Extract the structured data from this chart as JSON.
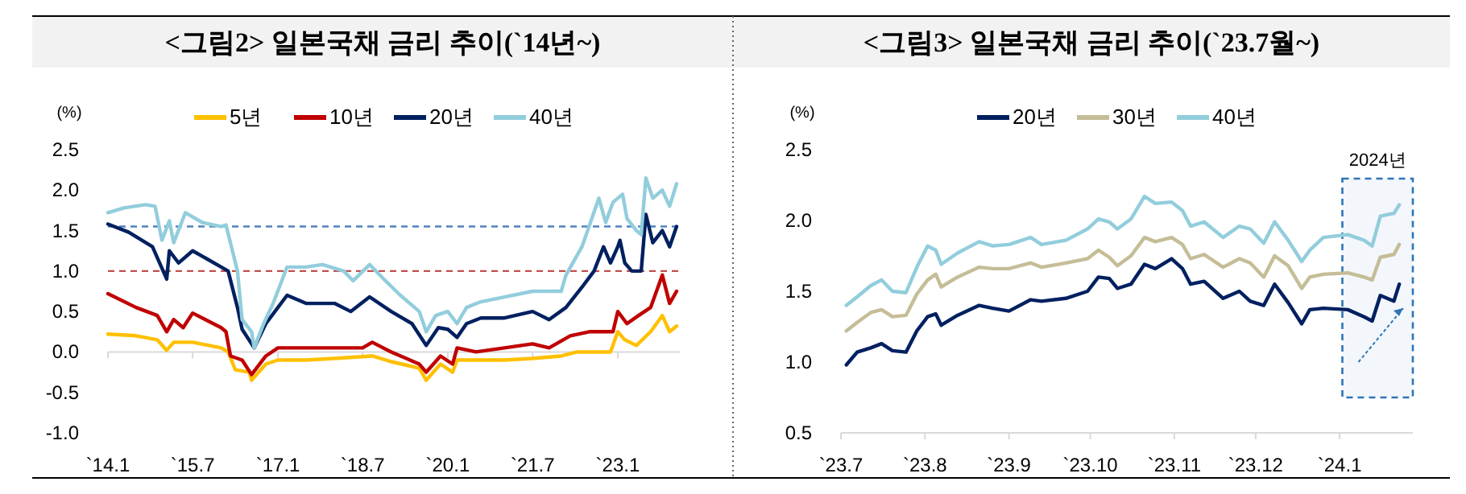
{
  "chart_data": [
    {
      "type": "line",
      "title": "<그림2> 일본국채 금리 추이(`14년~)",
      "ylabel": "(%)",
      "legend": "top",
      "grid": false,
      "line_style": "solid",
      "marker": "none",
      "xlim": [
        "2014-01-01",
        "2024-02-05"
      ],
      "xticks": [
        {
          "value": "2014-01-01",
          "label": "`14.1"
        },
        {
          "value": "2015-07-01",
          "label": "`15.7"
        },
        {
          "value": "2017-01-01",
          "label": "`17.1"
        },
        {
          "value": "2018-07-01",
          "label": "`18.7"
        },
        {
          "value": "2020-01-01",
          "label": "`20.1"
        },
        {
          "value": "2021-07-01",
          "label": "`21.7"
        },
        {
          "value": "2023-01-01",
          "label": "`23.1"
        }
      ],
      "ylim": [
        -1,
        2.5
      ],
      "yticks": [
        {
          "value": -1,
          "label": "-1.0"
        },
        {
          "value": -0.5,
          "label": "-0.5"
        },
        {
          "value": 0,
          "label": "0.0"
        },
        {
          "value": 0.5,
          "label": "0.5"
        },
        {
          "value": 1,
          "label": "1.0"
        },
        {
          "value": 1.5,
          "label": "1.5"
        },
        {
          "value": 2,
          "label": "2.0"
        },
        {
          "value": 2.5,
          "label": "2.5"
        }
      ],
      "ref_lines": [
        {
          "axis": "y",
          "value": 1.55,
          "color": "#4f81bd",
          "line_style": "dashed"
        },
        {
          "axis": "y",
          "value": 1.0,
          "color": "#c0504d",
          "line_style": "dashed"
        }
      ],
      "series": [
        {
          "name": "5년",
          "color": "#ffc000",
          "x": [
            "2014-01-01",
            "2014-07-01",
            "2014-11-15",
            "2015-01-15",
            "2015-03-01",
            "2015-07-01",
            "2016-01-01",
            "2016-02-15",
            "2016-04-01",
            "2016-07-01",
            "2016-07-15",
            "2016-10-15",
            "2017-01-01",
            "2017-07-01",
            "2018-01-01",
            "2018-09-01",
            "2019-01-01",
            "2019-07-01",
            "2019-08-15",
            "2019-11-15",
            "2020-02-01",
            "2020-03-01",
            "2021-01-01",
            "2021-07-01",
            "2022-01-01",
            "2022-04-15",
            "2022-11-15",
            "2023-01-01",
            "2023-02-15",
            "2023-05-01",
            "2023-08-01",
            "2023-10-15",
            "2023-12-01",
            "2024-01-15"
          ],
          "values": [
            0.22,
            0.2,
            0.15,
            0.02,
            0.12,
            0.12,
            0.05,
            0,
            -0.22,
            -0.25,
            -0.35,
            -0.15,
            -0.1,
            -0.1,
            -0.08,
            -0.05,
            -0.12,
            -0.2,
            -0.35,
            -0.15,
            -0.25,
            -0.1,
            -0.1,
            -0.08,
            -0.05,
            0,
            0,
            0.25,
            0.15,
            0.08,
            0.25,
            0.45,
            0.25,
            0.32
          ]
        },
        {
          "name": "10년",
          "color": "#c00000",
          "x": [
            "2014-01-01",
            "2014-07-01",
            "2014-11-15",
            "2015-01-15",
            "2015-03-01",
            "2015-05-01",
            "2015-07-01",
            "2016-01-01",
            "2016-02-01",
            "2016-03-01",
            "2016-05-15",
            "2016-07-15",
            "2016-10-15",
            "2017-01-01",
            "2017-07-01",
            "2018-01-01",
            "2018-07-01",
            "2018-09-01",
            "2019-01-01",
            "2019-07-01",
            "2019-08-15",
            "2019-11-15",
            "2020-02-01",
            "2020-03-01",
            "2020-07-01",
            "2021-01-01",
            "2021-07-01",
            "2021-10-15",
            "2022-03-01",
            "2022-07-01",
            "2022-12-01",
            "2023-01-01",
            "2023-03-01",
            "2023-05-15",
            "2023-08-01",
            "2023-10-15",
            "2023-12-01",
            "2024-01-15"
          ],
          "values": [
            0.72,
            0.55,
            0.45,
            0.25,
            0.4,
            0.3,
            0.48,
            0.3,
            0.25,
            -0.05,
            -0.1,
            -0.28,
            -0.05,
            0.05,
            0.05,
            0.05,
            0.05,
            0.12,
            0,
            -0.15,
            -0.25,
            -0.05,
            -0.15,
            0.05,
            0,
            0.05,
            0.1,
            0.05,
            0.2,
            0.25,
            0.25,
            0.5,
            0.35,
            0.45,
            0.55,
            0.95,
            0.6,
            0.75
          ]
        },
        {
          "name": "20년",
          "color": "#002060",
          "x": [
            "2014-01-01",
            "2014-05-15",
            "2014-10-15",
            "2015-01-15",
            "2015-02-01",
            "2015-04-01",
            "2015-07-01",
            "2016-01-01",
            "2016-02-15",
            "2016-04-15",
            "2016-05-15",
            "2016-08-01",
            "2016-10-15",
            "2017-01-01",
            "2017-03-01",
            "2017-07-01",
            "2018-01-01",
            "2018-04-15",
            "2018-08-15",
            "2019-01-01",
            "2019-05-15",
            "2019-08-15",
            "2019-11-01",
            "2020-01-01",
            "2020-03-01",
            "2020-05-01",
            "2020-08-01",
            "2021-01-01",
            "2021-07-01",
            "2021-10-15",
            "2022-02-01",
            "2022-05-15",
            "2022-08-01",
            "2022-10-01",
            "2022-11-15",
            "2023-01-01",
            "2023-01-15",
            "2023-02-15",
            "2023-04-01",
            "2023-06-01",
            "2023-07-01",
            "2023-08-15",
            "2023-10-15",
            "2023-12-01",
            "2024-01-15"
          ],
          "values": [
            1.58,
            1.48,
            1.3,
            0.9,
            1.25,
            1.1,
            1.25,
            1.05,
            1,
            0.55,
            0.28,
            0.05,
            0.35,
            0.55,
            0.7,
            0.6,
            0.6,
            0.5,
            0.68,
            0.5,
            0.35,
            0.08,
            0.3,
            0.28,
            0.18,
            0.35,
            0.42,
            0.42,
            0.5,
            0.4,
            0.55,
            0.8,
            1,
            1.3,
            1.1,
            1.3,
            1.38,
            1.1,
            1,
            1,
            1.7,
            1.35,
            1.5,
            1.3,
            1.55
          ]
        },
        {
          "name": "40년",
          "color": "#92cddc",
          "x": [
            "2014-01-01",
            "2014-04-15",
            "2014-09-01",
            "2014-11-01",
            "2014-12-15",
            "2015-02-01",
            "2015-03-01",
            "2015-05-15",
            "2015-09-01",
            "2016-01-01",
            "2016-02-01",
            "2016-04-15",
            "2016-05-15",
            "2016-07-15",
            "2016-08-01",
            "2016-10-01",
            "2016-12-01",
            "2017-03-01",
            "2017-07-01",
            "2017-10-15",
            "2018-03-01",
            "2018-05-01",
            "2018-08-15",
            "2018-11-15",
            "2019-03-01",
            "2019-07-01",
            "2019-08-15",
            "2019-10-15",
            "2020-01-01",
            "2020-03-01",
            "2020-05-01",
            "2020-08-01",
            "2021-01-01",
            "2021-07-01",
            "2022-01-01",
            "2022-02-01",
            "2022-05-15",
            "2022-09-01",
            "2022-10-15",
            "2022-12-01",
            "2023-01-01",
            "2023-02-01",
            "2023-03-01",
            "2023-05-01",
            "2023-06-01",
            "2023-07-01",
            "2023-08-15",
            "2023-10-15",
            "2023-12-01",
            "2024-01-15"
          ],
          "values": [
            1.72,
            1.78,
            1.82,
            1.8,
            1.38,
            1.62,
            1.35,
            1.72,
            1.6,
            1.55,
            1.57,
            1,
            0.4,
            0.25,
            0.05,
            0.35,
            0.6,
            1.05,
            1.05,
            1.08,
            1,
            0.88,
            1.08,
            0.9,
            0.7,
            0.5,
            0.25,
            0.45,
            0.5,
            0.35,
            0.55,
            0.62,
            0.68,
            0.75,
            0.75,
            0.95,
            1.3,
            1.9,
            1.6,
            1.85,
            1.9,
            1.95,
            1.65,
            1.5,
            1.45,
            2.15,
            1.9,
            2,
            1.8,
            2.08
          ]
        }
      ]
    },
    {
      "type": "line",
      "title": "<그림3> 일본국채 금리 추이(`23.7월~)",
      "ylabel": "(%)",
      "legend": "top",
      "grid": false,
      "line_style": "solid",
      "marker": "none",
      "xlim": [
        "2023-07-01",
        "2024-01-28"
      ],
      "xticks": [
        {
          "value": "2023-07-01",
          "label": "`23.7"
        },
        {
          "value": "2023-08-01",
          "label": "`23.8"
        },
        {
          "value": "2023-09-01",
          "label": "`23.9"
        },
        {
          "value": "2023-10-01",
          "label": "`23.10"
        },
        {
          "value": "2023-11-01",
          "label": "`23.11"
        },
        {
          "value": "2023-12-01",
          "label": "`23.12"
        },
        {
          "value": "2024-01-01",
          "label": "`24.1"
        }
      ],
      "ylim": [
        0.5,
        2.5
      ],
      "yticks": [
        {
          "value": 0.5,
          "label": "0.5"
        },
        {
          "value": 1,
          "label": "1.0"
        },
        {
          "value": 1.5,
          "label": "1.5"
        },
        {
          "value": 2,
          "label": "2.0"
        },
        {
          "value": 2.5,
          "label": "2.5"
        }
      ],
      "bands": [
        {
          "axis": "x",
          "from": "2024-01-02",
          "to": "2024-01-28",
          "label": "2024년",
          "color": "#2e75b6"
        }
      ],
      "x": [
        "2023-07-03",
        "2023-07-07",
        "2023-07-12",
        "2023-07-16",
        "2023-07-20",
        "2023-07-25",
        "2023-07-29",
        "2023-08-02",
        "2023-08-05",
        "2023-08-07",
        "2023-08-13",
        "2023-08-21",
        "2023-08-26",
        "2023-09-01",
        "2023-09-09",
        "2023-09-13",
        "2023-09-22",
        "2023-09-30",
        "2023-10-04",
        "2023-10-08",
        "2023-10-11",
        "2023-10-16",
        "2023-10-21",
        "2023-10-25",
        "2023-10-31",
        "2023-11-04",
        "2023-11-07",
        "2023-11-12",
        "2023-11-19",
        "2023-11-25",
        "2023-11-29",
        "2023-12-04",
        "2023-12-08",
        "2023-12-13",
        "2023-12-18",
        "2023-12-21",
        "2023-12-26",
        "2024-01-04",
        "2024-01-10",
        "2024-01-13",
        "2024-01-16",
        "2024-01-21",
        "2024-01-23"
      ],
      "series": [
        {
          "name": "20년",
          "color": "#002060",
          "values": [
            0.98,
            1.07,
            1.1,
            1.13,
            1.08,
            1.07,
            1.22,
            1.32,
            1.34,
            1.26,
            1.33,
            1.4,
            1.38,
            1.36,
            1.44,
            1.43,
            1.45,
            1.5,
            1.6,
            1.59,
            1.52,
            1.55,
            1.69,
            1.66,
            1.73,
            1.66,
            1.55,
            1.57,
            1.45,
            1.5,
            1.43,
            1.4,
            1.55,
            1.42,
            1.27,
            1.37,
            1.38,
            1.37,
            1.32,
            1.29,
            1.47,
            1.43,
            1.55
          ]
        },
        {
          "name": "30년",
          "color": "#c4bd97",
          "values": [
            1.22,
            1.28,
            1.35,
            1.37,
            1.32,
            1.33,
            1.48,
            1.58,
            1.62,
            1.53,
            1.6,
            1.67,
            1.66,
            1.66,
            1.7,
            1.67,
            1.7,
            1.73,
            1.79,
            1.74,
            1.68,
            1.75,
            1.88,
            1.85,
            1.88,
            1.83,
            1.73,
            1.76,
            1.67,
            1.73,
            1.7,
            1.6,
            1.75,
            1.68,
            1.52,
            1.6,
            1.62,
            1.63,
            1.6,
            1.58,
            1.74,
            1.76,
            1.83
          ]
        },
        {
          "name": "40년",
          "color": "#92cddc",
          "values": [
            1.4,
            1.46,
            1.54,
            1.58,
            1.5,
            1.49,
            1.67,
            1.82,
            1.79,
            1.69,
            1.77,
            1.85,
            1.82,
            1.83,
            1.88,
            1.83,
            1.86,
            1.94,
            2.01,
            1.99,
            1.94,
            2.01,
            2.17,
            2.12,
            2.13,
            2.07,
            1.96,
            1.99,
            1.88,
            1.96,
            1.94,
            1.84,
            1.99,
            1.86,
            1.71,
            1.79,
            1.88,
            1.9,
            1.86,
            1.82,
            2.03,
            2.05,
            2.11
          ]
        }
      ]
    }
  ]
}
